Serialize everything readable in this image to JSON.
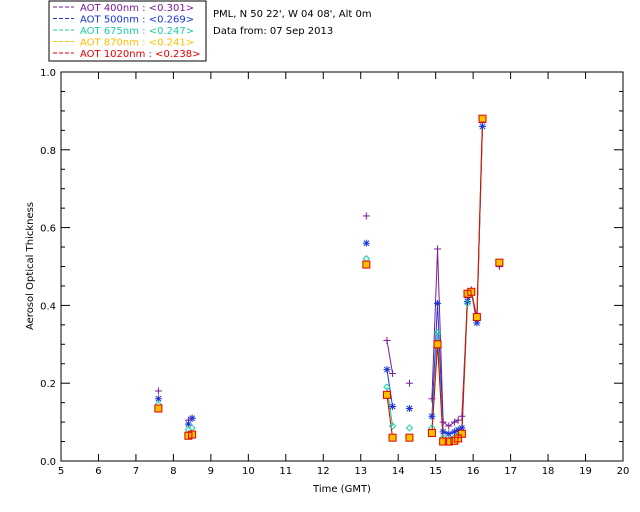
{
  "header": {
    "site_line": "PML, N 50 22', W 04 08', Alt 0m",
    "date_line": "Data from: 07 Sep 2013"
  },
  "legend": [
    {
      "label": "AOT  400nm : <0.301>",
      "color": "#7a1a9c"
    },
    {
      "label": "AOT  500nm : <0.269>",
      "color": "#1a34d6"
    },
    {
      "label": "AOT  675nm : <0.247>",
      "color": "#19d0a0"
    },
    {
      "label": "AOT  870nm : <0.241>",
      "color": "#ffc000"
    },
    {
      "label": "AOT 1020nm : <0.238>",
      "color": "#e00000"
    }
  ],
  "chart_data": {
    "type": "scatter",
    "xlabel": "Time (GMT)",
    "ylabel": "Aerosol Optical Thickness",
    "xlim": [
      5,
      20
    ],
    "ylim": [
      0,
      1
    ],
    "x_ticks": [
      "5",
      "6",
      "7",
      "8",
      "9",
      "10",
      "11",
      "12",
      "13",
      "14",
      "15",
      "16",
      "17",
      "18",
      "19",
      "20"
    ],
    "y_ticks": [
      "0.0",
      "0.2",
      "0.4",
      "0.6",
      "0.8",
      "1.0"
    ],
    "grid": false,
    "series": [
      {
        "name": "AOT  400nm",
        "color": "#7a1a9c",
        "marker": "plus",
        "points": [
          [
            7.6,
            0.18
          ],
          [
            8.4,
            0.105
          ],
          [
            8.5,
            0.11
          ],
          [
            13.15,
            0.63
          ],
          [
            13.7,
            0.31
          ],
          [
            13.85,
            0.225
          ],
          [
            14.3,
            0.2
          ],
          [
            14.9,
            0.16
          ],
          [
            15.05,
            0.545
          ],
          [
            15.2,
            0.1
          ],
          [
            15.35,
            0.09
          ],
          [
            15.5,
            0.1
          ],
          [
            15.6,
            0.105
          ],
          [
            15.7,
            0.115
          ],
          [
            15.85,
            0.42
          ],
          [
            15.95,
            0.44
          ],
          [
            16.1,
            0.365
          ],
          [
            16.25,
            0.87
          ],
          [
            16.7,
            0.5
          ]
        ],
        "lines": [
          [
            13.7,
            13.85
          ],
          [
            14.9,
            15.6
          ],
          [
            15.7,
            16.25
          ]
        ]
      },
      {
        "name": "AOT  500nm",
        "color": "#1a34d6",
        "marker": "star",
        "points": [
          [
            7.6,
            0.16
          ],
          [
            8.4,
            0.095
          ],
          [
            8.5,
            0.11
          ],
          [
            13.15,
            0.56
          ],
          [
            13.7,
            0.235
          ],
          [
            13.85,
            0.14
          ],
          [
            14.3,
            0.135
          ],
          [
            14.9,
            0.115
          ],
          [
            15.05,
            0.405
          ],
          [
            15.2,
            0.075
          ],
          [
            15.35,
            0.07
          ],
          [
            15.5,
            0.075
          ],
          [
            15.6,
            0.08
          ],
          [
            15.7,
            0.085
          ],
          [
            15.85,
            0.41
          ],
          [
            15.95,
            0.435
          ],
          [
            16.1,
            0.355
          ],
          [
            16.25,
            0.86
          ],
          [
            16.7,
            0.505
          ]
        ],
        "lines": [
          [
            13.7,
            13.85
          ],
          [
            14.9,
            15.6
          ],
          [
            15.7,
            16.25
          ]
        ]
      },
      {
        "name": "AOT  675nm",
        "color": "#19d0a0",
        "marker": "diamond",
        "points": [
          [
            7.6,
            0.145
          ],
          [
            8.4,
            0.08
          ],
          [
            8.5,
            0.085
          ],
          [
            13.15,
            0.52
          ],
          [
            13.7,
            0.19
          ],
          [
            13.85,
            0.09
          ],
          [
            14.3,
            0.085
          ],
          [
            14.9,
            0.085
          ],
          [
            15.05,
            0.33
          ],
          [
            15.2,
            0.06
          ],
          [
            15.35,
            0.055
          ],
          [
            15.5,
            0.06
          ],
          [
            15.6,
            0.065
          ],
          [
            15.7,
            0.07
          ],
          [
            15.85,
            0.405
          ],
          [
            15.95,
            0.43
          ],
          [
            16.1,
            0.37
          ],
          [
            16.25,
            0.88
          ],
          [
            16.7,
            0.51
          ]
        ],
        "lines": [
          [
            13.7,
            13.85
          ],
          [
            14.9,
            15.6
          ],
          [
            15.7,
            16.25
          ]
        ]
      },
      {
        "name": "AOT  870nm",
        "color": "#ffc000",
        "marker": "square",
        "points": [
          [
            7.6,
            0.135
          ],
          [
            8.4,
            0.065
          ],
          [
            8.5,
            0.068
          ],
          [
            13.15,
            0.505
          ],
          [
            13.7,
            0.17
          ],
          [
            13.85,
            0.06
          ],
          [
            14.3,
            0.06
          ],
          [
            14.9,
            0.072
          ],
          [
            15.05,
            0.3
          ],
          [
            15.2,
            0.05
          ],
          [
            15.35,
            0.05
          ],
          [
            15.5,
            0.052
          ],
          [
            15.6,
            0.058
          ],
          [
            15.7,
            0.07
          ],
          [
            15.85,
            0.43
          ],
          [
            15.95,
            0.435
          ],
          [
            16.1,
            0.37
          ],
          [
            16.25,
            0.88
          ],
          [
            16.7,
            0.51
          ]
        ],
        "lines": [
          [
            13.7,
            13.85
          ],
          [
            14.9,
            15.6
          ],
          [
            15.7,
            16.25
          ]
        ]
      },
      {
        "name": "AOT 1020nm",
        "color": "#e00000",
        "marker": "square",
        "points": [
          [
            7.6,
            0.135
          ],
          [
            8.4,
            0.065
          ],
          [
            8.5,
            0.068
          ],
          [
            13.15,
            0.505
          ],
          [
            13.7,
            0.17
          ],
          [
            13.85,
            0.06
          ],
          [
            14.3,
            0.06
          ],
          [
            14.9,
            0.072
          ],
          [
            15.05,
            0.3
          ],
          [
            15.2,
            0.05
          ],
          [
            15.35,
            0.05
          ],
          [
            15.5,
            0.052
          ],
          [
            15.6,
            0.058
          ],
          [
            15.7,
            0.07
          ],
          [
            15.85,
            0.43
          ],
          [
            15.95,
            0.435
          ],
          [
            16.1,
            0.37
          ],
          [
            16.25,
            0.88
          ],
          [
            16.7,
            0.51
          ]
        ],
        "lines": [
          [
            13.7,
            13.85
          ],
          [
            14.9,
            15.6
          ],
          [
            15.7,
            16.25
          ]
        ]
      }
    ]
  }
}
